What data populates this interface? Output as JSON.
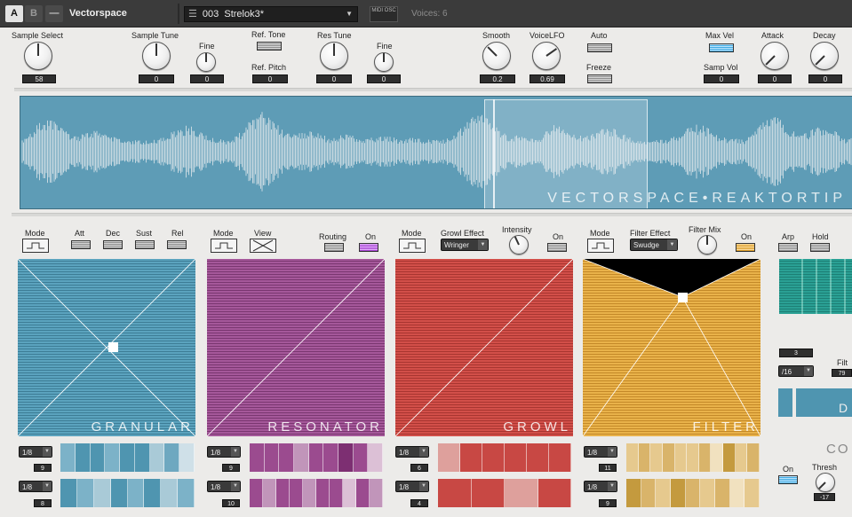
{
  "header": {
    "tab_a": "A",
    "tab_b": "B",
    "minimize": "—",
    "title": "Vectorspace",
    "preset_number": "003",
    "preset_name": "Strelok3*",
    "midi_osc": "MIDI OSC",
    "voices": "Voices: 6"
  },
  "top_controls": {
    "sample_select": {
      "label": "Sample Select",
      "value": "58"
    },
    "sample_tune": {
      "label": "Sample Tune",
      "value": "0"
    },
    "fine1": {
      "label": "Fine",
      "value": "0"
    },
    "ref_tone": {
      "label": "Ref. Tone"
    },
    "ref_pitch": {
      "label": "Ref. Pitch",
      "value": "0"
    },
    "res_tune": {
      "label": "Res Tune",
      "value": "0"
    },
    "fine2": {
      "label": "Fine",
      "value": "0"
    },
    "smooth": {
      "label": "Smooth",
      "value": "0.2"
    },
    "voice_lfo": {
      "label": "VoiceLFO",
      "value": "0.69"
    },
    "auto": {
      "label": "Auto"
    },
    "freeze": {
      "label": "Freeze"
    },
    "max_vel": {
      "label": "Max Vel"
    },
    "samp_vol": {
      "label": "Samp Vol",
      "value": "0"
    },
    "attack": {
      "label": "Attack",
      "value": "0"
    },
    "decay": {
      "label": "Decay",
      "value": "0"
    }
  },
  "waveform": {
    "watermark": "VECTORSPACE•REAKTORTIP"
  },
  "sections": {
    "granular": {
      "mode": "Mode",
      "att": "Att",
      "dec": "Dec",
      "sust": "Sust",
      "rel": "Rel",
      "name": "GRANULAR",
      "rate1": "1/8",
      "val1": "9",
      "rate2": "1/8",
      "val2": "8"
    },
    "resonator": {
      "mode": "Mode",
      "view": "View",
      "routing": "Routing",
      "on": "On",
      "name": "RESONATOR",
      "rate1": "1/8",
      "val1": "9",
      "rate2": "1/8",
      "val2": "10"
    },
    "growl": {
      "mode": "Mode",
      "effect_label": "Growl Effect",
      "effect_value": "Wringer",
      "intensity": "Intensity",
      "on": "On",
      "name": "GROWL",
      "rate1": "1/8",
      "val1": "6",
      "rate2": "1/8",
      "val2": "4"
    },
    "filter": {
      "mode": "Mode",
      "effect_label": "Filter Effect",
      "effect_value": "Swudge",
      "mix": "Filter Mix",
      "on": "On",
      "name": "FILTER",
      "rate1": "1/8",
      "val1": "11",
      "rate2": "1/8",
      "val2": "9"
    },
    "arp": {
      "arp": "Arp",
      "hold": "Hold",
      "val": "3",
      "rate": "/16",
      "filt": "Filt",
      "filt_val": "79",
      "d_letter": "D",
      "co": "CO",
      "on": "On",
      "thresh": "Thresh",
      "thresh_val": "-17"
    }
  },
  "colors": {
    "granular": "#4f95b0",
    "resonator": "#9b4b8f",
    "growl": "#c84844",
    "filter": "#e0a940",
    "arp": "#1f8a80"
  }
}
